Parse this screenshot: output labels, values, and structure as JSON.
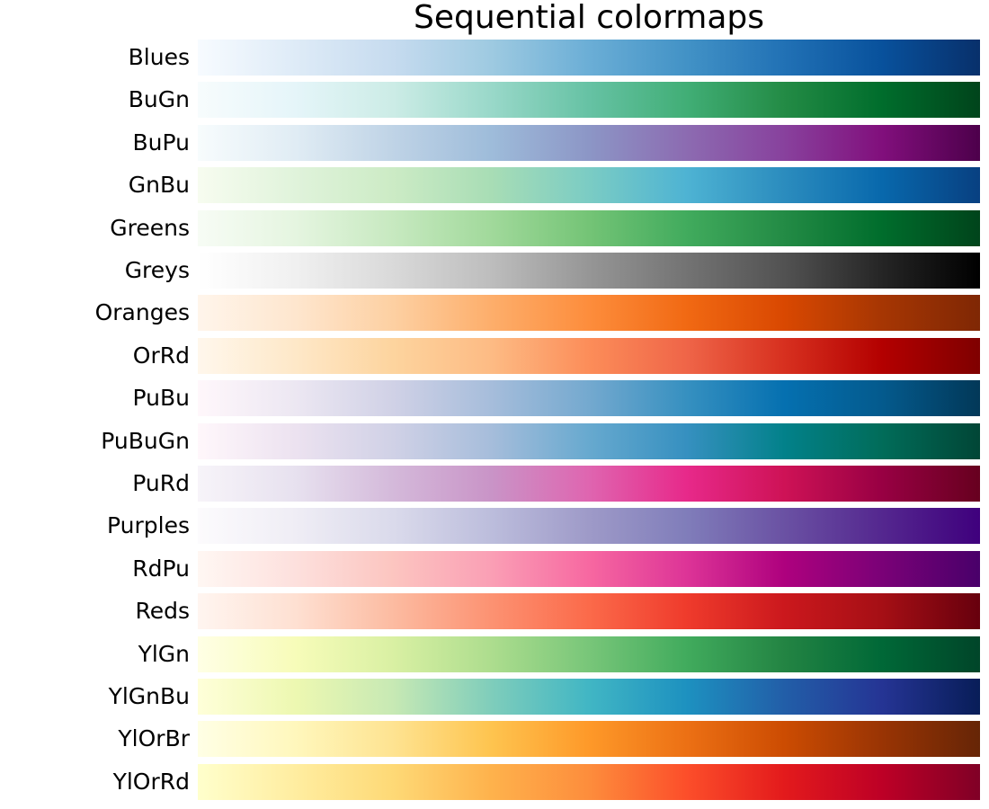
{
  "chart_data": {
    "type": "colormap-swatches",
    "title": "Sequential colormaps",
    "grid": false,
    "colormaps": [
      {
        "name": "Blues",
        "colors": [
          "#f7fbff",
          "#deebf7",
          "#c6dbef",
          "#9ecae1",
          "#6baed6",
          "#4292c6",
          "#2171b5",
          "#08519c",
          "#08306b"
        ]
      },
      {
        "name": "BuGn",
        "colors": [
          "#f7fcfd",
          "#e5f5f9",
          "#ccece6",
          "#99d8c9",
          "#66c2a4",
          "#41ae76",
          "#238b45",
          "#006d2c",
          "#00441b"
        ]
      },
      {
        "name": "BuPu",
        "colors": [
          "#f7fcfd",
          "#e0ecf4",
          "#bfd3e6",
          "#9ebcda",
          "#8c96c6",
          "#8c6bb1",
          "#88419d",
          "#810f7c",
          "#4d004b"
        ]
      },
      {
        "name": "GnBu",
        "colors": [
          "#f7fcf0",
          "#e0f3db",
          "#ccebc5",
          "#a8ddb5",
          "#7bccc4",
          "#4eb3d3",
          "#2b8cbe",
          "#0868ac",
          "#084081"
        ]
      },
      {
        "name": "Greens",
        "colors": [
          "#f7fcf5",
          "#e5f5e0",
          "#c7e9c0",
          "#a1d99b",
          "#74c476",
          "#41ab5d",
          "#238b45",
          "#006d2c",
          "#00441b"
        ]
      },
      {
        "name": "Greys",
        "colors": [
          "#ffffff",
          "#f0f0f0",
          "#d9d9d9",
          "#bdbdbd",
          "#969696",
          "#737373",
          "#525252",
          "#252525",
          "#000000"
        ]
      },
      {
        "name": "Oranges",
        "colors": [
          "#fff5eb",
          "#fee6ce",
          "#fdd0a2",
          "#fdae6b",
          "#fd8d3c",
          "#f16913",
          "#d94801",
          "#a63603",
          "#7f2704"
        ]
      },
      {
        "name": "OrRd",
        "colors": [
          "#fff7ec",
          "#fee8c8",
          "#fdd49e",
          "#fdbb84",
          "#fc8d59",
          "#ef6548",
          "#d7301f",
          "#b30000",
          "#7f0000"
        ]
      },
      {
        "name": "PuBu",
        "colors": [
          "#fff7fb",
          "#ece7f2",
          "#d0d1e6",
          "#a6bddb",
          "#74a9cf",
          "#3690c0",
          "#0570b0",
          "#045a8d",
          "#023858"
        ]
      },
      {
        "name": "PuBuGn",
        "colors": [
          "#fff7fb",
          "#ece2f0",
          "#d0d1e6",
          "#a6bddb",
          "#67a9cf",
          "#3690c0",
          "#02818a",
          "#016c59",
          "#014636"
        ]
      },
      {
        "name": "PuRd",
        "colors": [
          "#f7f4f9",
          "#e7e1ef",
          "#d4b9da",
          "#c994c7",
          "#df65b0",
          "#e7298a",
          "#ce1256",
          "#980043",
          "#67001f"
        ]
      },
      {
        "name": "Purples",
        "colors": [
          "#fcfbfd",
          "#efedf5",
          "#dadaeb",
          "#bcbddc",
          "#9e9ac8",
          "#807dba",
          "#6a51a3",
          "#54278f",
          "#3f007d"
        ]
      },
      {
        "name": "RdPu",
        "colors": [
          "#fff7f3",
          "#fde0dd",
          "#fcc5c0",
          "#fa9fb5",
          "#f768a1",
          "#dd3497",
          "#ae017e",
          "#7a0177",
          "#49006a"
        ]
      },
      {
        "name": "Reds",
        "colors": [
          "#fff5f0",
          "#fee0d2",
          "#fcbba1",
          "#fc9272",
          "#fb6a4a",
          "#ef3b2c",
          "#cb181d",
          "#a50f15",
          "#67000d"
        ]
      },
      {
        "name": "YlGn",
        "colors": [
          "#ffffe5",
          "#f7fcb9",
          "#d9f0a3",
          "#addd8e",
          "#78c679",
          "#41ab5d",
          "#238443",
          "#006837",
          "#004529"
        ]
      },
      {
        "name": "YlGnBu",
        "colors": [
          "#ffffd9",
          "#edf8b1",
          "#c7e9b4",
          "#7fcdbb",
          "#41b6c4",
          "#1d91c0",
          "#225ea8",
          "#253494",
          "#081d58"
        ]
      },
      {
        "name": "YlOrBr",
        "colors": [
          "#ffffe5",
          "#fff7bc",
          "#fee391",
          "#fec44f",
          "#fe9929",
          "#ec7014",
          "#cc4c02",
          "#993404",
          "#662506"
        ]
      },
      {
        "name": "YlOrRd",
        "colors": [
          "#ffffcc",
          "#ffeda0",
          "#fed976",
          "#feb24c",
          "#fd8d3c",
          "#fc4e2a",
          "#e31a1c",
          "#bd0026",
          "#800026"
        ]
      }
    ]
  }
}
